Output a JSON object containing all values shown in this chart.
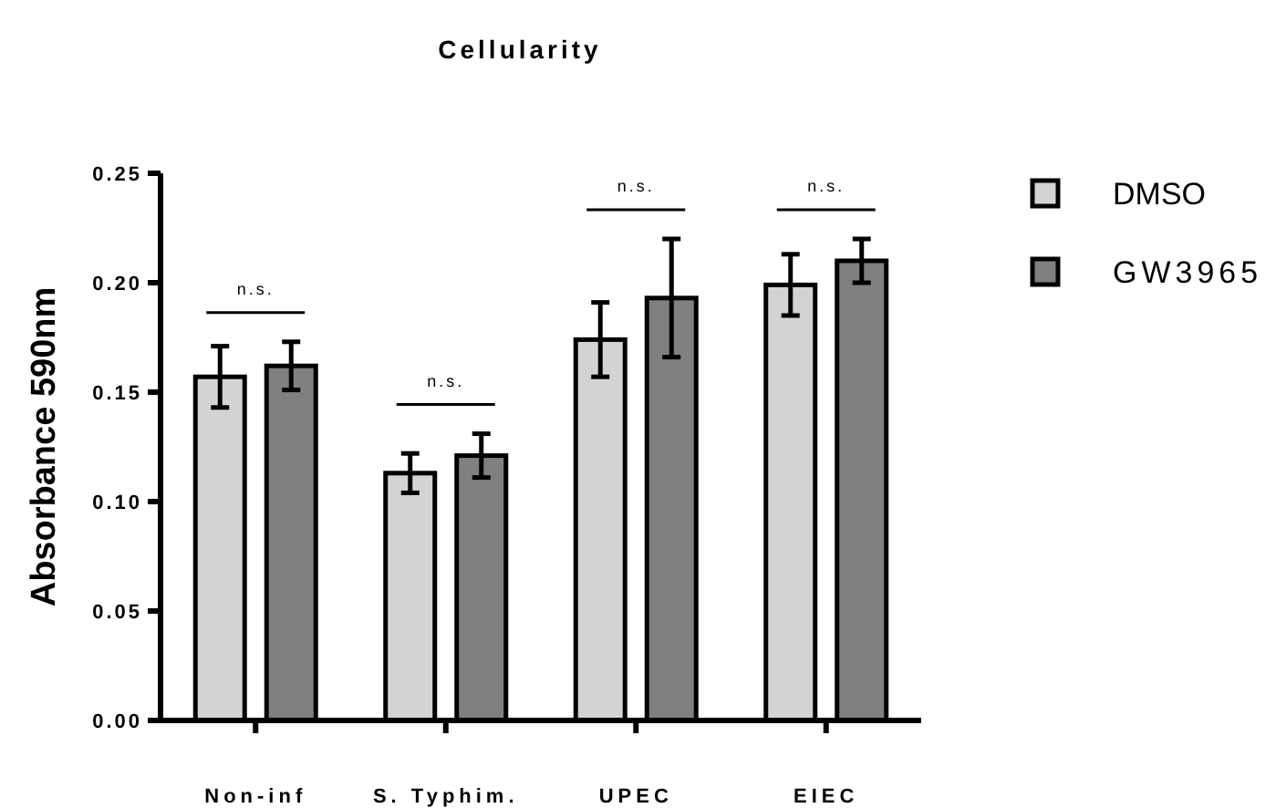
{
  "chart_data": {
    "type": "bar",
    "title": "Cellularity",
    "ylabel": "Absorbance 590nm",
    "categories": [
      "Non-inf",
      "S. Typhim.",
      "UPEC",
      "EIEC"
    ],
    "series": [
      {
        "name": "DMSO",
        "color": "#d3d3d3",
        "values": [
          0.157,
          0.113,
          0.174,
          0.199
        ],
        "errors": [
          0.014,
          0.009,
          0.017,
          0.014
        ]
      },
      {
        "name": "GW3965",
        "color": "#808080",
        "values": [
          0.162,
          0.121,
          0.193,
          0.21
        ],
        "errors": [
          0.011,
          0.01,
          0.027,
          0.01
        ]
      }
    ],
    "ylim": [
      0,
      0.25
    ],
    "yticks": [
      {
        "value": 0,
        "label": "0.00"
      },
      {
        "value": 0.05,
        "label": "0.05"
      },
      {
        "value": 0.1,
        "label": "0.10"
      },
      {
        "value": 0.15,
        "label": "0.15"
      },
      {
        "value": 0.2,
        "label": "0.20"
      },
      {
        "value": 0.25,
        "label": "0.25"
      }
    ],
    "annotations": [
      "n.s.",
      "n.s.",
      "n.s.",
      "n.s."
    ],
    "legend": "right",
    "grid": false
  }
}
